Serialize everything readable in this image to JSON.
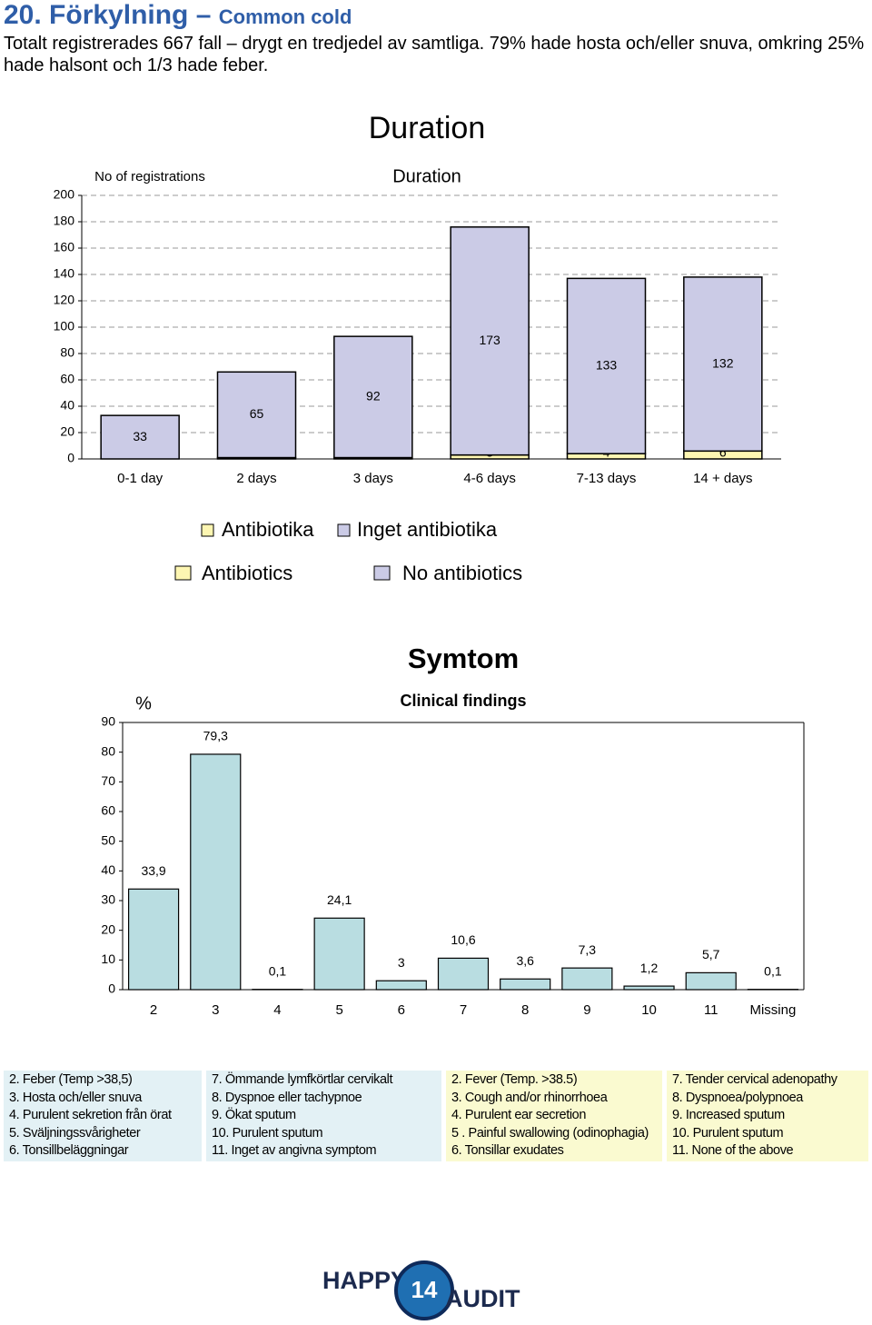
{
  "header": {
    "title": "20. Förkylning –",
    "subtitle": "Common cold",
    "text": "Totalt registrerades 667 fall – drygt en tredjedel av samtliga. 79% hade hosta och/eller snuva, omkring 25% hade halsont och 1/3 hade feber."
  },
  "chart_data": [
    {
      "type": "bar",
      "stacked": true,
      "title": "Duration",
      "subtitle": "Duration",
      "y_label": "No of registrations",
      "categories": [
        "0-1 day",
        "2 days",
        "3 days",
        "4-6 days",
        "7-13 days",
        "14 + days"
      ],
      "series": [
        {
          "name": "Antibiotics",
          "color": "#fdf6b2",
          "values": [
            null,
            1,
            1,
            3,
            4,
            6
          ]
        },
        {
          "name": "No antibiotics",
          "color": "#cbcbe6",
          "values": [
            33,
            65,
            92,
            173,
            133,
            132
          ]
        }
      ],
      "legend_sv": [
        "Antibiotika",
        "Inget antibiotika"
      ],
      "ylim": [
        0,
        200
      ],
      "yticks": [
        0,
        20,
        40,
        60,
        80,
        100,
        120,
        140,
        160,
        180,
        200
      ],
      "grid": true
    },
    {
      "type": "bar",
      "title": "Symtom",
      "subtitle": "Clinical findings",
      "y_label": "%",
      "categories": [
        "2",
        "3",
        "4",
        "5",
        "6",
        "7",
        "8",
        "9",
        "10",
        "11",
        "Missing"
      ],
      "values": [
        33.9,
        79.3,
        0.1,
        24.1,
        3,
        10.6,
        3.6,
        7.3,
        1.2,
        5.7,
        0.1
      ],
      "value_labels": [
        "33,9",
        "79,3",
        "0,1",
        "24,1",
        "3",
        "10,6",
        "3,6",
        "7,3",
        "1,2",
        "5,7",
        "0,1"
      ],
      "color": "#b9dde1",
      "ylim": [
        0,
        90
      ],
      "yticks": [
        0,
        10,
        20,
        30,
        40,
        50,
        60,
        70,
        80,
        90
      ],
      "grid": false
    }
  ],
  "findings_table": {
    "columns": [
      [
        "2. Feber (Temp >38,5)",
        "3. Hosta och/eller snuva",
        "4. Purulent sekretion från örat",
        "5. Sväljningssvårigheter",
        "6. Tonsillbeläggningar"
      ],
      [
        "7. Ömmande lymfkörtlar cervikalt",
        "8. Dyspnoe eller tachypnoe",
        "9. Ökat sputum",
        "10. Purulent sputum",
        "11. Inget av angivna symptom"
      ],
      [
        "2. Fever (Temp. >38.5)",
        "3. Cough and/or rhinorrhoea",
        "4. Purulent ear secretion",
        "5 . Painful swallowing (odinophagia)",
        "6. Tonsillar exudates"
      ],
      [
        "7. Tender cervical adenopathy",
        "8. Dyspnoea/polypnoea",
        "9. Increased sputum",
        "10. Purulent sputum",
        "11. None of the above"
      ]
    ]
  },
  "logo": {
    "left": "HAPPY",
    "number": "14",
    "right": "AUDIT"
  }
}
